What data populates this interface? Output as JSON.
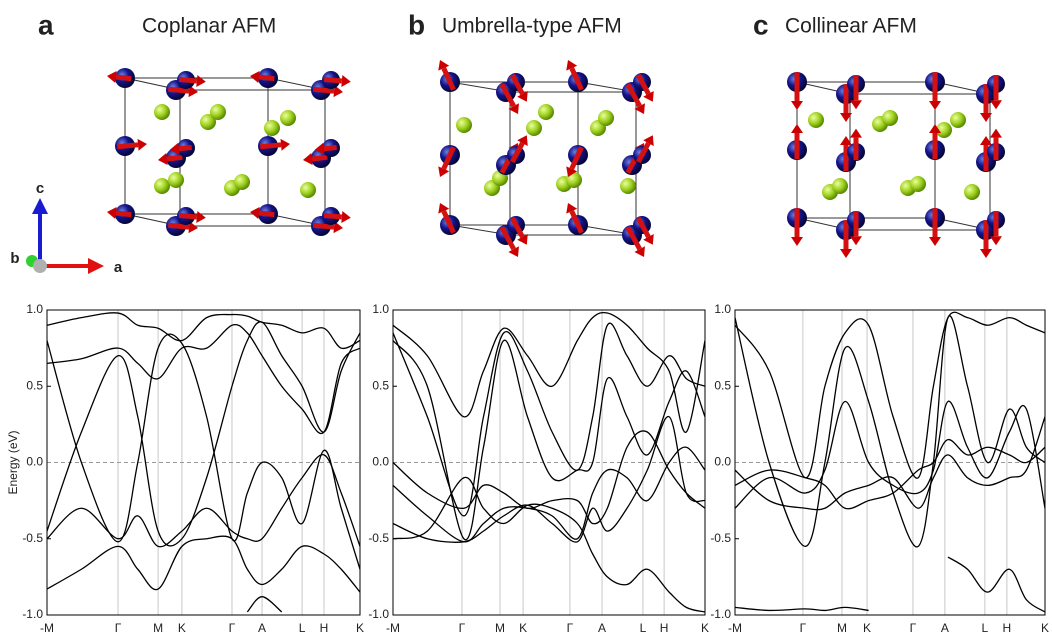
{
  "chart_data": [
    {
      "type": "line",
      "panel_label": "a",
      "title": "Coplanar AFM",
      "ylabel": "Energy (eV)",
      "xlim": [
        0,
        1
      ],
      "ylim": [
        -1,
        1
      ],
      "xticks": [
        {
          "value": 0,
          "label": "-M"
        },
        {
          "value": 0.227,
          "label": "Γ"
        },
        {
          "value": 0.355,
          "label": "M"
        },
        {
          "value": 0.431,
          "label": "K"
        },
        {
          "value": 0.591,
          "label": "Γ"
        },
        {
          "value": 0.687,
          "label": "A"
        },
        {
          "value": 0.815,
          "label": "L"
        },
        {
          "value": 0.885,
          "label": "H"
        },
        {
          "value": 1,
          "label": "K"
        }
      ],
      "yticks": [
        {
          "value": -1,
          "label": "-1.0"
        },
        -0.5,
        {
          "value": 0,
          "label": "0.0"
        },
        0.5,
        {
          "value": 1,
          "label": "1.0"
        }
      ],
      "x": [
        0,
        0.11,
        0.227,
        0.29,
        0.355,
        0.431,
        0.51,
        0.591,
        0.64,
        0.687,
        0.75,
        0.815,
        0.885,
        0.94,
        1
      ],
      "series": [
        {
          "color": "#000000",
          "values": [
            -0.83,
            -0.7,
            -0.55,
            -0.7,
            -0.83,
            -0.55,
            -0.5,
            -0.5,
            -0.7,
            -0.8,
            -0.7,
            -0.55,
            -0.6,
            -0.7,
            -0.85
          ]
        },
        {
          "color": "#000000",
          "values": [
            0.8,
            0.0,
            -0.52,
            0.0,
            0.75,
            0.78,
            0.3,
            -0.5,
            -0.2,
            0.0,
            -0.1,
            -0.4,
            0.08,
            -0.3,
            -0.7
          ]
        },
        {
          "color": "#000000",
          "values": [
            -0.45,
            0.2,
            0.7,
            0.3,
            -0.45,
            -0.5,
            -0.1,
            0.5,
            0.8,
            0.92,
            0.7,
            0.5,
            0.2,
            0.6,
            0.85
          ]
        },
        {
          "color": "#000000",
          "values": [
            0.65,
            0.68,
            0.75,
            0.65,
            0.55,
            0.75,
            0.75,
            0.9,
            0.85,
            0.7,
            0.5,
            0.35,
            0.2,
            0.65,
            0.75
          ]
        },
        {
          "color": "#000000",
          "values": [
            0.9,
            0.95,
            0.98,
            0.9,
            0.88,
            0.8,
            0.95,
            0.97,
            0.96,
            0.92,
            0.9,
            0.85,
            0.88,
            0.75,
            0.8
          ]
        },
        {
          "color": "#000000",
          "values": [
            -0.5,
            -0.3,
            -0.5,
            -0.35,
            -0.55,
            -0.45,
            -0.3,
            -0.45,
            -0.5,
            -0.5,
            -0.3,
            -0.1,
            0.05,
            -0.2,
            -0.55
          ]
        },
        {
          "color": "#000000",
          "values": [
            null,
            null,
            null,
            null,
            null,
            null,
            null,
            null,
            -0.98,
            -0.88,
            -0.98,
            null,
            null,
            null,
            null
          ]
        }
      ]
    },
    {
      "type": "line",
      "panel_label": "b",
      "title": "Umbrella-type AFM",
      "xlim": [
        0,
        1
      ],
      "ylim": [
        -1,
        1
      ],
      "xticks": [
        {
          "value": 0,
          "label": "-M"
        },
        {
          "value": 0.221,
          "label": "Γ"
        },
        {
          "value": 0.343,
          "label": "M"
        },
        {
          "value": 0.417,
          "label": "K"
        },
        {
          "value": 0.567,
          "label": "Γ"
        },
        {
          "value": 0.67,
          "label": "A"
        },
        {
          "value": 0.801,
          "label": "L"
        },
        {
          "value": 0.869,
          "label": "H"
        },
        {
          "value": 1,
          "label": "K"
        }
      ],
      "yticks": [
        {
          "value": -1,
          "label": "-1.0"
        },
        -0.5,
        {
          "value": 0,
          "label": "0.0"
        },
        0.5,
        {
          "value": 1,
          "label": "1.0"
        }
      ],
      "x": [
        0,
        0.11,
        0.227,
        0.29,
        0.355,
        0.431,
        0.51,
        0.591,
        0.64,
        0.687,
        0.75,
        0.815,
        0.885,
        0.94,
        1
      ],
      "series": [
        {
          "color": "#000000",
          "values": [
            0.85,
            0.3,
            -0.35,
            0.3,
            0.85,
            0.6,
            0.2,
            -0.05,
            0.3,
            0.9,
            0.7,
            0.5,
            0.7,
            0.55,
            0.5
          ]
        },
        {
          "color": "#000000",
          "values": [
            0.8,
            0.5,
            -0.5,
            0.1,
            0.8,
            0.3,
            -0.1,
            -0.05,
            0.0,
            0.55,
            0.3,
            0.05,
            0.4,
            0.6,
            0.3
          ]
        },
        {
          "color": "#000000",
          "values": [
            -0.15,
            -0.35,
            -0.52,
            -0.4,
            -0.3,
            -0.3,
            -0.35,
            -0.5,
            -0.2,
            -0.05,
            -0.1,
            -0.25,
            0.0,
            0.1,
            -0.05
          ]
        },
        {
          "color": "#000000",
          "values": [
            0.0,
            -0.2,
            -0.3,
            -0.15,
            -0.2,
            -0.3,
            -0.25,
            -0.25,
            -0.4,
            -0.3,
            0.1,
            0.2,
            -0.05,
            -0.2,
            -0.3
          ]
        },
        {
          "color": "#000000",
          "values": [
            -0.4,
            -0.5,
            -0.52,
            -0.45,
            -0.35,
            -0.28,
            -0.4,
            -0.52,
            -0.3,
            -0.45,
            -0.3,
            -0.05,
            0.3,
            -0.2,
            -0.25
          ]
        },
        {
          "color": "#000000",
          "values": [
            -0.5,
            -0.45,
            -0.1,
            -0.3,
            -0.4,
            -0.28,
            -0.3,
            -0.4,
            -0.6,
            -0.75,
            -0.8,
            -0.7,
            -0.85,
            -0.95,
            -0.98
          ]
        },
        {
          "color": "#000000",
          "values": [
            0.9,
            0.7,
            0.3,
            0.6,
            0.88,
            0.7,
            0.5,
            0.8,
            0.95,
            0.98,
            0.9,
            0.75,
            0.6,
            0.2,
            0.8
          ]
        }
      ]
    },
    {
      "type": "line",
      "panel_label": "c",
      "title": "Collinear AFM",
      "xlim": [
        0,
        1
      ],
      "ylim": [
        -1,
        1
      ],
      "xticks": [
        {
          "value": 0,
          "label": "-M"
        },
        {
          "value": 0.219,
          "label": "Γ"
        },
        {
          "value": 0.345,
          "label": "M"
        },
        {
          "value": 0.426,
          "label": "K"
        },
        {
          "value": 0.574,
          "label": "Γ"
        },
        {
          "value": 0.677,
          "label": "A"
        },
        {
          "value": 0.806,
          "label": "L"
        },
        {
          "value": 0.877,
          "label": "H"
        },
        {
          "value": 1,
          "label": "K"
        }
      ],
      "yticks": [
        {
          "value": -1,
          "label": "-1.0"
        },
        -0.5,
        {
          "value": 0,
          "label": "0.0"
        },
        0.5,
        {
          "value": 1,
          "label": "1.0"
        }
      ],
      "x": [
        0,
        0.11,
        0.227,
        0.29,
        0.355,
        0.431,
        0.51,
        0.591,
        0.64,
        0.687,
        0.75,
        0.815,
        0.885,
        0.94,
        1
      ],
      "series": [
        {
          "color": "#000000",
          "values": [
            0.95,
            0.0,
            -0.55,
            0.0,
            0.75,
            0.4,
            -0.2,
            -0.55,
            0.0,
            0.95,
            0.5,
            0.0,
            0.35,
            0.1,
            0.0
          ]
        },
        {
          "color": "#000000",
          "values": [
            -0.3,
            -0.1,
            -0.2,
            -0.05,
            0.4,
            0.0,
            -0.15,
            -0.2,
            -0.05,
            0.4,
            0.1,
            -0.1,
            0.2,
            0.35,
            -0.3
          ]
        },
        {
          "color": "#000000",
          "values": [
            -0.05,
            -0.25,
            -0.3,
            -0.3,
            -0.2,
            -0.15,
            -0.1,
            -0.3,
            -0.1,
            0.05,
            -0.1,
            -0.15,
            -0.1,
            -0.05,
            0.3
          ]
        },
        {
          "color": "#000000",
          "values": [
            -0.15,
            -0.05,
            -0.1,
            -0.15,
            -0.3,
            -0.25,
            -0.2,
            -0.05,
            0.0,
            0.15,
            0.05,
            0.1,
            0.05,
            0.0,
            0.1
          ]
        },
        {
          "color": "#000000",
          "values": [
            0.9,
            0.6,
            -0.1,
            0.5,
            0.85,
            0.9,
            0.3,
            -0.1,
            0.5,
            0.95,
            0.95,
            0.9,
            0.95,
            0.9,
            0.85
          ]
        },
        {
          "color": "#000000",
          "values": [
            -0.95,
            -0.97,
            -0.96,
            -0.97,
            -0.95,
            -0.97,
            null,
            null,
            null,
            -0.62,
            -0.7,
            -0.85,
            -0.7,
            -0.9,
            -0.98
          ]
        }
      ]
    }
  ]
}
